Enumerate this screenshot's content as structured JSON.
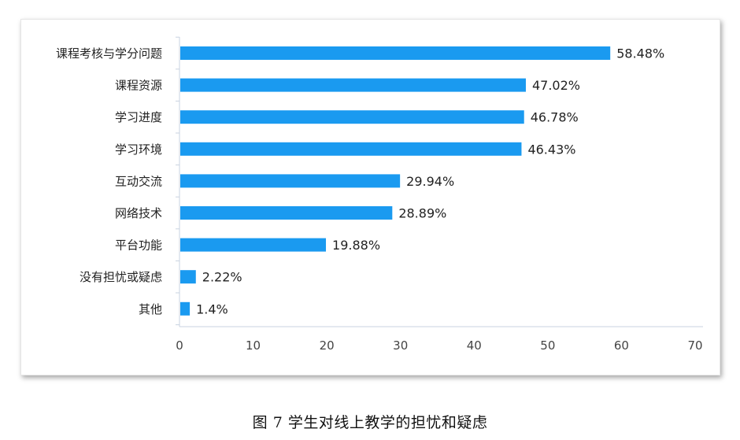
{
  "caption": "图 7  学生对线上教学的担忧和疑虑",
  "chart_data": {
    "type": "bar",
    "orientation": "horizontal",
    "title": "",
    "xlabel": "",
    "ylabel": "",
    "xlim": [
      0,
      70
    ],
    "x_ticks": [
      0,
      10,
      20,
      30,
      40,
      50,
      60,
      70
    ],
    "grid": false,
    "bar_color": "#1a9af0",
    "categories": [
      "课程考核与学分问题",
      "课程资源",
      "学习进度",
      "学习环境",
      "互动交流",
      "网络技术",
      "平台功能",
      "没有担忧或疑虑",
      "其他"
    ],
    "values": [
      58.48,
      47.02,
      46.78,
      46.43,
      29.94,
      28.89,
      19.88,
      2.22,
      1.4
    ],
    "data_labels": [
      "58.48%",
      "47.02%",
      "46.78%",
      "46.43%",
      "29.94%",
      "28.89%",
      "19.88%",
      "2.22%",
      "1.4%"
    ]
  }
}
